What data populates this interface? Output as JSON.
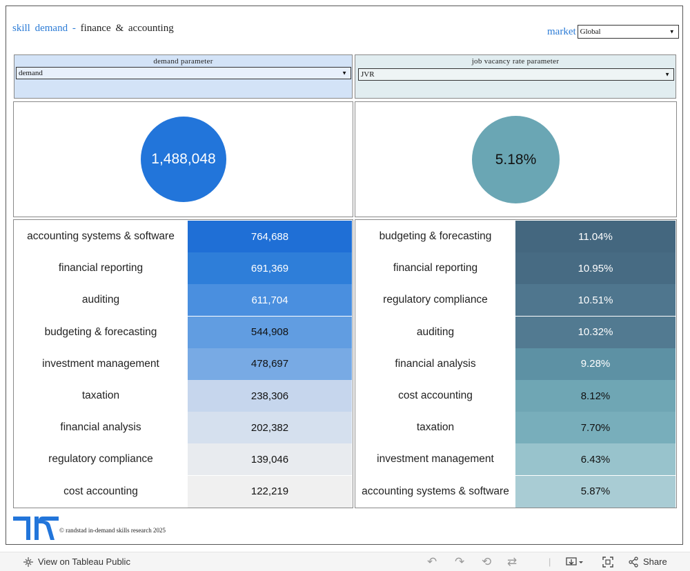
{
  "header": {
    "title_prefix": "skill demand -",
    "title_suffix": "finance & accounting",
    "market_label": "market",
    "market_value": "Global"
  },
  "params": {
    "demand": {
      "title": "demand parameter",
      "value": "demand"
    },
    "jvr": {
      "title": "job vacancy rate parameter",
      "value": "JVR"
    }
  },
  "kpi": {
    "demand_total": "1,488,048",
    "jvr_total": "5.18%"
  },
  "demand_table": [
    {
      "skill": "accounting systems & software",
      "value": "764,688",
      "color": "#1f6fd6",
      "text": "#ffffff"
    },
    {
      "skill": "financial reporting",
      "value": "691,369",
      "color": "#2e7ed9",
      "text": "#ffffff"
    },
    {
      "skill": "auditing",
      "value": "611,704",
      "color": "#4a8fdf",
      "text": "#ffffff"
    },
    {
      "skill": "budgeting & forecasting",
      "value": "544,908",
      "color": "#619de1",
      "text": "#111111"
    },
    {
      "skill": "investment management",
      "value": "478,697",
      "color": "#78aae4",
      "text": "#111111"
    },
    {
      "skill": "taxation",
      "value": "238,306",
      "color": "#c6d6ed",
      "text": "#111111"
    },
    {
      "skill": "financial analysis",
      "value": "202,382",
      "color": "#d5e0ee",
      "text": "#111111"
    },
    {
      "skill": "regulatory compliance",
      "value": "139,046",
      "color": "#e8ebef",
      "text": "#111111"
    },
    {
      "skill": "cost accounting",
      "value": "122,219",
      "color": "#f0f0f0",
      "text": "#111111"
    }
  ],
  "jvr_table": [
    {
      "skill": "budgeting & forecasting",
      "value": "11.04%",
      "color": "#44677f",
      "text": "#ffffff"
    },
    {
      "skill": "financial reporting",
      "value": "10.95%",
      "color": "#476b83",
      "text": "#ffffff"
    },
    {
      "skill": "regulatory compliance",
      "value": "10.51%",
      "color": "#4f768e",
      "text": "#ffffff"
    },
    {
      "skill": "auditing",
      "value": "10.32%",
      "color": "#527a91",
      "text": "#ffffff"
    },
    {
      "skill": "financial analysis",
      "value": "9.28%",
      "color": "#5d91a4",
      "text": "#ffffff"
    },
    {
      "skill": "cost accounting",
      "value": "8.12%",
      "color": "#6fa6b4",
      "text": "#111111"
    },
    {
      "skill": "taxation",
      "value": "7.70%",
      "color": "#78aebb",
      "text": "#111111"
    },
    {
      "skill": "investment management",
      "value": "6.43%",
      "color": "#98c3cc",
      "text": "#111111"
    },
    {
      "skill": "accounting systems & software",
      "value": "5.87%",
      "color": "#a9ccd4",
      "text": "#111111"
    }
  ],
  "footer": {
    "copyright": "© randstad in-demand skills research 2025"
  },
  "toolbar": {
    "view_label": "View on Tableau Public",
    "share_label": "Share"
  },
  "colors": {
    "accent_blue": "#2b7bd6",
    "demand_circle": "#2275da",
    "jvr_circle": "#6aa6b4",
    "demand_param_bg": "#d3e3f7",
    "jvr_param_bg": "#e1edf0"
  }
}
